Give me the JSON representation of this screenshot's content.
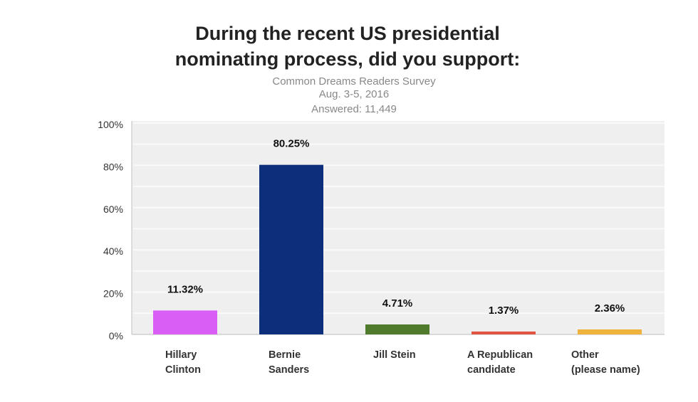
{
  "chart_data": {
    "type": "bar",
    "title": [
      "During the recent US presidential",
      "nominating process, did you support:"
    ],
    "subtitle": [
      "Common Dreams Readers Survey",
      "Aug. 3-5, 2016",
      "Answered:  11,449"
    ],
    "categories": [
      [
        "Hillary",
        "Clinton"
      ],
      [
        "Bernie",
        "Sanders"
      ],
      [
        "Jill Stein"
      ],
      [
        "A Republican",
        "candidate"
      ],
      [
        "Other",
        "(please name)"
      ]
    ],
    "values": [
      11.32,
      80.25,
      4.71,
      1.37,
      2.36
    ],
    "data_labels": [
      "11.32%",
      "80.25%",
      "4.71%",
      "1.37%",
      "2.36%"
    ],
    "colors": [
      "#d95ef5",
      "#0d2e7a",
      "#507a2c",
      "#e0533f",
      "#efb23c"
    ],
    "ylim": [
      0,
      100
    ],
    "yticks": [
      "0%",
      "20%",
      "40%",
      "60%",
      "80%",
      "100%"
    ],
    "xlabel": "",
    "ylabel": "",
    "grid": true,
    "plot_background": "#efefef"
  }
}
